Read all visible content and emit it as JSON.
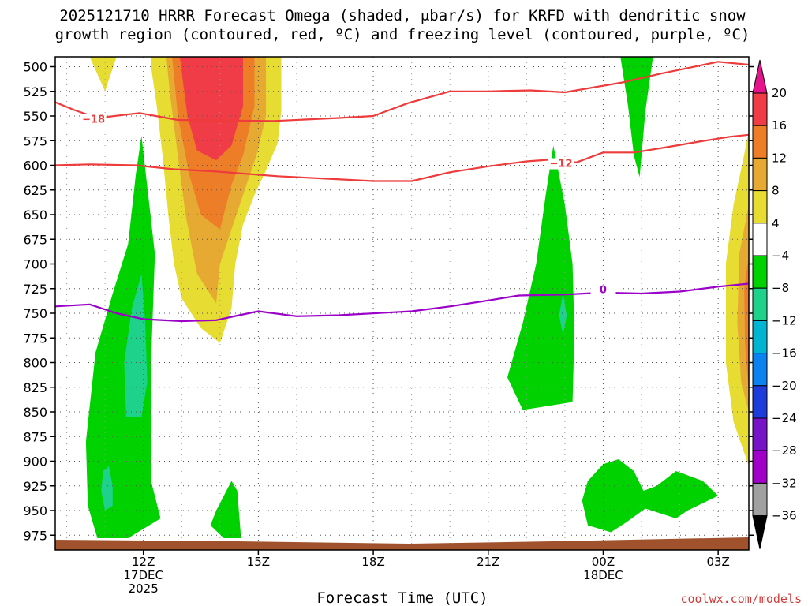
{
  "chart_data": {
    "type": "heatmap",
    "title_line1": "2025121710 HRRR Forecast Omega (shaded, μbar/s) for KRFD with dendritic snow",
    "title_line2": "growth region (contoured, red, ºC) and freezing level (contoured, purple, ºC)",
    "xlabel": "Forecast Time (UTC)",
    "credit": "coolwx.com/models",
    "x_range_hours": [
      9.7,
      27.8
    ],
    "x_ticks": [
      {
        "hour": 12,
        "label": "12Z",
        "sub1": "17DEC",
        "sub2": "2025"
      },
      {
        "hour": 15,
        "label": "15Z",
        "sub1": "",
        "sub2": ""
      },
      {
        "hour": 18,
        "label": "18Z",
        "sub1": "",
        "sub2": ""
      },
      {
        "hour": 21,
        "label": "21Z",
        "sub1": "",
        "sub2": ""
      },
      {
        "hour": 24,
        "label": "00Z",
        "sub1": "18DEC",
        "sub2": ""
      },
      {
        "hour": 27,
        "label": "03Z",
        "sub1": "",
        "sub2": ""
      }
    ],
    "y_range_hpa": [
      490,
      990
    ],
    "y_ticks": [
      500,
      525,
      550,
      575,
      600,
      625,
      650,
      675,
      700,
      725,
      750,
      775,
      800,
      825,
      850,
      875,
      900,
      925,
      950,
      975
    ],
    "y_tick_labels": [
      "500",
      "525",
      "550",
      "575",
      "600",
      "625",
      "650",
      "675",
      "700",
      "725",
      "750",
      "775",
      "800",
      "825",
      "850",
      "875",
      "900",
      "925",
      "950",
      "975"
    ],
    "colorbar": {
      "labels": [
        "20",
        "16",
        "12",
        "8",
        "4",
        "−4",
        "−8",
        "−12",
        "−16",
        "−20",
        "−24",
        "−28",
        "−32",
        "−36"
      ],
      "colors": [
        "#f03c46",
        "#ee7d28",
        "#e6aa32",
        "#e6dc32",
        "#ffffff",
        "#00d200",
        "#1ed28c",
        "#00b4d2",
        "#0a82f0",
        "#1e3cdc",
        "#7814c8",
        "#a000c8",
        "#a0a0a0"
      ],
      "top_arrow_color": "#e6148c",
      "bottom_arrow_color": "#000000"
    },
    "omega_regions": [
      {
        "name": "yellow-top-left",
        "color": "#e6dc32",
        "points": [
          [
            10.6,
            490
          ],
          [
            11.3,
            490
          ],
          [
            11.0,
            525
          ]
        ]
      },
      {
        "name": "yellow-main-ascent",
        "color": "#e6dc32",
        "points": [
          [
            12.2,
            490
          ],
          [
            15.6,
            490
          ],
          [
            15.6,
            545
          ],
          [
            15.5,
            578
          ],
          [
            15.2,
            605
          ],
          [
            14.9,
            630
          ],
          [
            14.6,
            660
          ],
          [
            14.4,
            700
          ],
          [
            14.3,
            745
          ],
          [
            14.0,
            780
          ],
          [
            13.5,
            765
          ],
          [
            13.0,
            735
          ],
          [
            12.8,
            700
          ],
          [
            12.65,
            650
          ],
          [
            12.5,
            590
          ],
          [
            12.35,
            540
          ],
          [
            12.2,
            500
          ]
        ]
      },
      {
        "name": "orange-light-main",
        "color": "#e6aa32",
        "points": [
          [
            12.6,
            490
          ],
          [
            15.2,
            490
          ],
          [
            15.2,
            550
          ],
          [
            14.95,
            590
          ],
          [
            14.6,
            630
          ],
          [
            14.3,
            665
          ],
          [
            14.0,
            700
          ],
          [
            13.9,
            740
          ],
          [
            13.4,
            710
          ],
          [
            13.1,
            650
          ],
          [
            12.9,
            590
          ],
          [
            12.7,
            530
          ]
        ]
      },
      {
        "name": "orange-main",
        "color": "#ee7d28",
        "points": [
          [
            12.75,
            490
          ],
          [
            14.9,
            490
          ],
          [
            14.9,
            540
          ],
          [
            14.6,
            590
          ],
          [
            14.3,
            620
          ],
          [
            14.0,
            665
          ],
          [
            13.5,
            650
          ],
          [
            13.2,
            610
          ],
          [
            12.9,
            550
          ]
        ]
      },
      {
        "name": "red-core",
        "color": "#f03c46",
        "points": [
          [
            12.95,
            490
          ],
          [
            14.6,
            490
          ],
          [
            14.6,
            540
          ],
          [
            14.3,
            580
          ],
          [
            13.9,
            595
          ],
          [
            13.4,
            585
          ],
          [
            13.15,
            550
          ]
        ]
      },
      {
        "name": "yellow-right-edge",
        "color": "#e6dc32",
        "points": [
          [
            27.8,
            565
          ],
          [
            27.8,
            905
          ],
          [
            27.4,
            860
          ],
          [
            27.2,
            800
          ],
          [
            27.2,
            700
          ],
          [
            27.4,
            640
          ],
          [
            27.65,
            595
          ]
        ]
      },
      {
        "name": "orange-light-right-edge",
        "color": "#e6aa32",
        "points": [
          [
            27.8,
            640
          ],
          [
            27.8,
            850
          ],
          [
            27.6,
            820
          ],
          [
            27.5,
            760
          ],
          [
            27.55,
            690
          ]
        ]
      },
      {
        "name": "orange-right-edge",
        "color": "#ee7d28",
        "points": [
          [
            27.8,
            690
          ],
          [
            27.8,
            830
          ],
          [
            27.7,
            780
          ],
          [
            27.68,
            725
          ]
        ]
      },
      {
        "name": "green-left-column",
        "color": "#00d200",
        "points": [
          [
            11.95,
            570
          ],
          [
            12.3,
            690
          ],
          [
            12.2,
            800
          ],
          [
            12.2,
            920
          ],
          [
            12.45,
            958
          ],
          [
            11.6,
            978
          ],
          [
            10.8,
            978
          ],
          [
            10.55,
            945
          ],
          [
            10.5,
            880
          ],
          [
            10.75,
            790
          ],
          [
            11.2,
            730
          ],
          [
            11.6,
            680
          ],
          [
            11.8,
            610
          ]
        ]
      },
      {
        "name": "teal-left-mid",
        "color": "#1ed28c",
        "points": [
          [
            11.95,
            710
          ],
          [
            12.05,
            760
          ],
          [
            12.1,
            820
          ],
          [
            11.95,
            855
          ],
          [
            11.55,
            855
          ],
          [
            11.5,
            800
          ],
          [
            11.7,
            745
          ]
        ]
      },
      {
        "name": "teal-left-low",
        "color": "#1ed28c",
        "points": [
          [
            11.1,
            905
          ],
          [
            11.2,
            925
          ],
          [
            11.2,
            945
          ],
          [
            11.0,
            950
          ],
          [
            10.9,
            930
          ],
          [
            10.95,
            910
          ]
        ]
      },
      {
        "name": "green-small-blob",
        "color": "#00d200",
        "points": [
          [
            13.9,
            950
          ],
          [
            14.3,
            920
          ],
          [
            14.45,
            930
          ],
          [
            14.55,
            978
          ],
          [
            14.1,
            978
          ],
          [
            13.75,
            965
          ]
        ]
      },
      {
        "name": "green-mid-right-column",
        "color": "#00d200",
        "points": [
          [
            22.7,
            580
          ],
          [
            23.0,
            640
          ],
          [
            23.2,
            700
          ],
          [
            23.25,
            770
          ],
          [
            23.2,
            840
          ],
          [
            22.4,
            845
          ],
          [
            21.9,
            848
          ],
          [
            21.5,
            815
          ],
          [
            21.9,
            760
          ],
          [
            22.25,
            700
          ],
          [
            22.5,
            630
          ]
        ]
      },
      {
        "name": "teal-mid-right",
        "color": "#1ed28c",
        "points": [
          [
            22.95,
            730
          ],
          [
            23.05,
            752
          ],
          [
            22.95,
            772
          ],
          [
            22.85,
            752
          ]
        ]
      },
      {
        "name": "green-top-right-column",
        "color": "#00d200",
        "points": [
          [
            24.45,
            490
          ],
          [
            25.3,
            490
          ],
          [
            25.1,
            545
          ],
          [
            25.0,
            590
          ],
          [
            24.95,
            612
          ],
          [
            24.8,
            590
          ],
          [
            24.65,
            540
          ]
        ]
      },
      {
        "name": "green-low-right",
        "color": "#00d200",
        "points": [
          [
            24.0,
            903
          ],
          [
            24.4,
            898
          ],
          [
            24.8,
            910
          ],
          [
            25.05,
            930
          ],
          [
            25.4,
            925
          ],
          [
            25.9,
            910
          ],
          [
            26.6,
            920
          ],
          [
            27.0,
            935
          ],
          [
            26.2,
            950
          ],
          [
            25.9,
            958
          ],
          [
            25.1,
            948
          ],
          [
            24.6,
            962
          ],
          [
            24.2,
            972
          ],
          [
            23.6,
            965
          ],
          [
            23.45,
            940
          ],
          [
            23.6,
            920
          ]
        ]
      }
    ],
    "contours": [
      {
        "name": "dendritic-minus18",
        "color": "#ee3b3b",
        "label": "−18",
        "label_hour": 10.7,
        "label_hpa": 555,
        "points": [
          [
            9.7,
            536
          ],
          [
            10.2,
            544
          ],
          [
            10.8,
            552
          ],
          [
            11.9,
            547
          ],
          [
            12.9,
            554
          ],
          [
            15.4,
            555
          ],
          [
            17.1,
            552
          ],
          [
            18.0,
            550
          ],
          [
            18.9,
            537
          ],
          [
            20.0,
            525
          ],
          [
            21.0,
            525
          ],
          [
            22.1,
            524
          ],
          [
            23.0,
            526
          ],
          [
            24.5,
            516
          ],
          [
            25.5,
            507
          ],
          [
            26.5,
            499
          ],
          [
            27.0,
            495
          ],
          [
            27.8,
            498
          ]
        ]
      },
      {
        "name": "dendritic-minus12",
        "color": "#ee3b3b",
        "label": "−12",
        "label_hour": 22.9,
        "label_hpa": 600,
        "points": [
          [
            9.7,
            600
          ],
          [
            10.6,
            599
          ],
          [
            11.8,
            600
          ],
          [
            12.8,
            604
          ],
          [
            13.8,
            606
          ],
          [
            15.5,
            611
          ],
          [
            17.0,
            614
          ],
          [
            18.0,
            616
          ],
          [
            19.0,
            616
          ],
          [
            20.0,
            607
          ],
          [
            21.0,
            601
          ],
          [
            22.0,
            596
          ],
          [
            22.7,
            594
          ],
          [
            23.3,
            597
          ],
          [
            24.0,
            587
          ],
          [
            24.8,
            587
          ],
          [
            25.6,
            582
          ],
          [
            26.5,
            576
          ],
          [
            27.3,
            571
          ],
          [
            27.8,
            569
          ]
        ]
      },
      {
        "name": "freezing-level-0",
        "color": "#9a00c8",
        "label": "0",
        "label_hour": 24.0,
        "label_hpa": 728,
        "points": [
          [
            9.7,
            743
          ],
          [
            10.6,
            741
          ],
          [
            11.3,
            750
          ],
          [
            12.0,
            756
          ],
          [
            13.0,
            758
          ],
          [
            13.9,
            757
          ],
          [
            14.5,
            752
          ],
          [
            15.0,
            748
          ],
          [
            16.0,
            753
          ],
          [
            17.1,
            752
          ],
          [
            18.5,
            749
          ],
          [
            19.0,
            748
          ],
          [
            20.0,
            743
          ],
          [
            21.0,
            737
          ],
          [
            21.8,
            732
          ],
          [
            23.0,
            731
          ],
          [
            24.0,
            729
          ],
          [
            25.0,
            730
          ],
          [
            26.0,
            728
          ],
          [
            27.0,
            723
          ],
          [
            27.8,
            720
          ]
        ]
      }
    ]
  }
}
